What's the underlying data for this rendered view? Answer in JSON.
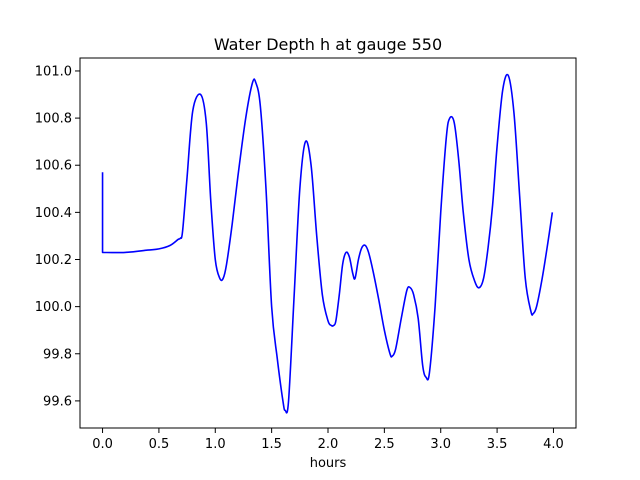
{
  "chart_data": {
    "type": "line",
    "title": "Water Depth h at gauge 550",
    "xlabel": "hours",
    "ylabel": "",
    "xlim": [
      -0.2,
      4.2
    ],
    "ylim": [
      99.485,
      101.055
    ],
    "xticks": [
      {
        "value": 0.0,
        "label": "0.0"
      },
      {
        "value": 0.5,
        "label": "0.5"
      },
      {
        "value": 1.0,
        "label": "1.0"
      },
      {
        "value": 1.5,
        "label": "1.5"
      },
      {
        "value": 2.0,
        "label": "2.0"
      },
      {
        "value": 2.5,
        "label": "2.5"
      },
      {
        "value": 3.0,
        "label": "3.0"
      },
      {
        "value": 3.5,
        "label": "3.5"
      },
      {
        "value": 4.0,
        "label": "4.0"
      }
    ],
    "yticks": [
      {
        "value": 99.6,
        "label": "99.6"
      },
      {
        "value": 99.8,
        "label": "99.8"
      },
      {
        "value": 100.0,
        "label": "100.0"
      },
      {
        "value": 100.2,
        "label": "100.2"
      },
      {
        "value": 100.4,
        "label": "100.4"
      },
      {
        "value": 100.6,
        "label": "100.6"
      },
      {
        "value": 100.8,
        "label": "100.8"
      },
      {
        "value": 101.0,
        "label": "101.0"
      }
    ],
    "grid": false,
    "series": [
      {
        "color": "#0000ff",
        "x": [
          0.0,
          0.0,
          0.2,
          0.4,
          0.5,
          0.6,
          0.67,
          0.69,
          0.71,
          0.75,
          0.8,
          0.87,
          0.92,
          0.96,
          1.0,
          1.04,
          1.07,
          1.1,
          1.15,
          1.2,
          1.27,
          1.33,
          1.36,
          1.4,
          1.45,
          1.5,
          1.55,
          1.6,
          1.62,
          1.65,
          1.7,
          1.75,
          1.8,
          1.85,
          1.9,
          1.95,
          2.0,
          2.03,
          2.05,
          2.07,
          2.1,
          2.13,
          2.16,
          2.19,
          2.22,
          2.24,
          2.27,
          2.3,
          2.33,
          2.36,
          2.4,
          2.45,
          2.5,
          2.55,
          2.57,
          2.6,
          2.65,
          2.7,
          2.73,
          2.76,
          2.8,
          2.84,
          2.87,
          2.9,
          2.95,
          3.0,
          3.05,
          3.08,
          3.12,
          3.16,
          3.2,
          3.25,
          3.3,
          3.34,
          3.38,
          3.42,
          3.46,
          3.5,
          3.55,
          3.6,
          3.65,
          3.7,
          3.75,
          3.8,
          3.82,
          3.85,
          3.9,
          3.95,
          3.99
        ],
        "values": [
          100.57,
          100.23,
          100.23,
          100.24,
          100.245,
          100.26,
          100.285,
          100.29,
          100.32,
          100.55,
          100.83,
          100.9,
          100.78,
          100.45,
          100.2,
          100.12,
          100.12,
          100.18,
          100.35,
          100.55,
          100.8,
          100.95,
          100.95,
          100.85,
          100.5,
          100.0,
          99.78,
          99.6,
          99.56,
          99.6,
          100.05,
          100.5,
          100.7,
          100.6,
          100.3,
          100.05,
          99.94,
          99.92,
          99.92,
          99.94,
          100.05,
          100.18,
          100.23,
          100.21,
          100.14,
          100.12,
          100.2,
          100.25,
          100.26,
          100.23,
          100.15,
          100.03,
          99.9,
          99.8,
          99.79,
          99.82,
          99.95,
          100.07,
          100.08,
          100.05,
          99.95,
          99.75,
          99.7,
          99.72,
          100.0,
          100.4,
          100.72,
          100.8,
          100.78,
          100.62,
          100.4,
          100.2,
          100.11,
          100.08,
          100.12,
          100.25,
          100.43,
          100.68,
          100.92,
          100.98,
          100.82,
          100.47,
          100.12,
          99.98,
          99.97,
          100.0,
          100.12,
          100.27,
          100.4
        ]
      }
    ]
  }
}
